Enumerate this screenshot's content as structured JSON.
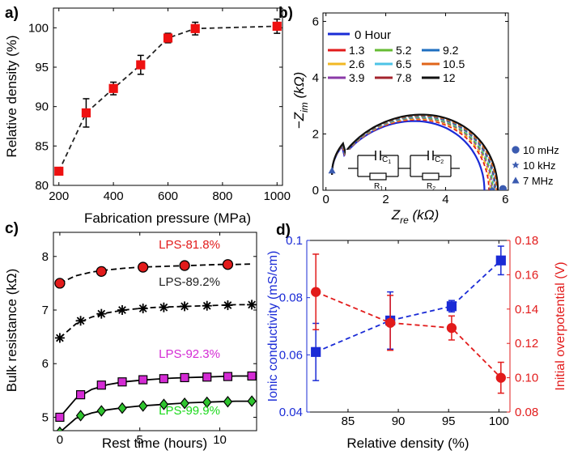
{
  "chart_data": [
    {
      "id": "a",
      "type": "line",
      "panel_label": "a)",
      "xlabel": "Fabrication pressure (MPa)",
      "ylabel": "Relative density (%)",
      "xlim": [
        180,
        1020
      ],
      "ylim": [
        80,
        102.5
      ],
      "xticks": [
        "200",
        "400",
        "600",
        "800",
        "1000"
      ],
      "yticks": [
        "80",
        "85",
        "90",
        "95",
        "100"
      ],
      "marker_color": "#ee1111",
      "line_color": "#222222",
      "x": [
        200,
        300,
        400,
        500,
        600,
        700,
        1000
      ],
      "y": [
        81.8,
        89.2,
        92.3,
        95.3,
        98.7,
        99.9,
        100.2
      ],
      "err": [
        0.4,
        1.8,
        0.8,
        1.2,
        0.6,
        0.8,
        0.9
      ]
    },
    {
      "id": "b",
      "type": "line",
      "panel_label": "b)",
      "xlabel": "Z",
      "xlabel_sub": "re",
      "xlabel_unit": " (kΩ)",
      "ylabel": "−Z",
      "ylabel_sub": "im",
      "ylabel_unit": " (kΩ)",
      "xlim": [
        -0.1,
        6.1
      ],
      "ylim": [
        0,
        6.3
      ],
      "xticks": [
        "0",
        "2",
        "4",
        "6"
      ],
      "yticks": [
        "0",
        "2",
        "4",
        "6"
      ],
      "legend_title": "0 Hour",
      "legend_title_color": "#1a2bd6",
      "legend": [
        {
          "label": "1.3",
          "color": "#e21b1b"
        },
        {
          "label": "5.2",
          "color": "#66bb33"
        },
        {
          "label": "9.2",
          "color": "#1f6fc0"
        },
        {
          "label": "2.6",
          "color": "#f2b824"
        },
        {
          "label": "6.5",
          "color": "#4dc3e6"
        },
        {
          "label": "10.5",
          "color": "#e0651a"
        },
        {
          "label": "3.9",
          "color": "#8b3aa8"
        },
        {
          "label": "7.8",
          "color": "#a4242e"
        },
        {
          "label": "12",
          "color": "#111111"
        }
      ],
      "series": [
        {
          "name": "0 Hour",
          "r0": 0.2,
          "r1": 5.3,
          "peak": 2.45,
          "color": "#1a2bd6",
          "dashed": false
        },
        {
          "name": "1.3",
          "r0": 0.2,
          "r1": 5.45,
          "peak": 2.5,
          "color": "#e21b1b",
          "dashed": true
        },
        {
          "name": "2.6",
          "r0": 0.2,
          "r1": 5.5,
          "peak": 2.53,
          "color": "#f2b824",
          "dashed": true
        },
        {
          "name": "3.9",
          "r0": 0.2,
          "r1": 5.55,
          "peak": 2.56,
          "color": "#8b3aa8",
          "dashed": true
        },
        {
          "name": "5.2",
          "r0": 0.2,
          "r1": 5.58,
          "peak": 2.58,
          "color": "#66bb33",
          "dashed": true
        },
        {
          "name": "6.5",
          "r0": 0.2,
          "r1": 5.62,
          "peak": 2.6,
          "color": "#4dc3e6",
          "dashed": true
        },
        {
          "name": "7.8",
          "r0": 0.2,
          "r1": 5.65,
          "peak": 2.62,
          "color": "#a4242e",
          "dashed": true
        },
        {
          "name": "9.2",
          "r0": 0.2,
          "r1": 5.67,
          "peak": 2.63,
          "color": "#1f6fc0",
          "dashed": true
        },
        {
          "name": "10.5",
          "r0": 0.2,
          "r1": 5.7,
          "peak": 2.65,
          "color": "#e0651a",
          "dashed": true
        },
        {
          "name": "12",
          "r0": 0.2,
          "r1": 5.75,
          "peak": 2.68,
          "color": "#111111",
          "dashed": false
        }
      ],
      "freq_markers": [
        {
          "label": "10 mHz",
          "symbol": "circle",
          "x": 5.92,
          "y": 0.05
        },
        {
          "label": "10 kHz",
          "symbol": "star",
          "x": 5.55,
          "y": 0.02
        },
        {
          "label": "7 MHz",
          "symbol": "triangle",
          "x": 0.2,
          "y": 0.7
        }
      ],
      "marker_color": "#3b5bb0",
      "circuit_labels": [
        "C",
        "R",
        "C",
        "R"
      ],
      "circuit_subscripts": [
        "1",
        "1",
        "2",
        "2"
      ]
    },
    {
      "id": "c",
      "type": "line",
      "panel_label": "c)",
      "xlabel": "Rest time (hours)",
      "ylabel": "Bulk resistance (kΩ)",
      "xlim": [
        -0.4,
        12.3
      ],
      "ylim": [
        4.75,
        8.45
      ],
      "xticks": [
        "0",
        "5",
        "10"
      ],
      "yticks": [
        "5",
        "6",
        "7",
        "8"
      ],
      "series": [
        {
          "name": "LPS-81.8%",
          "color": "#e21b1b",
          "label_color": "#e21b1b",
          "marker": "circle",
          "line": "dashed",
          "x": [
            0,
            2.6,
            5.2,
            7.8,
            10.5
          ],
          "y": [
            7.5,
            7.72,
            7.8,
            7.83,
            7.85
          ],
          "fit_x": [
            0,
            1,
            2,
            3,
            4,
            5,
            6,
            7,
            8,
            9,
            10,
            11,
            12
          ],
          "fit_y": [
            7.5,
            7.64,
            7.71,
            7.75,
            7.78,
            7.8,
            7.81,
            7.82,
            7.83,
            7.84,
            7.85,
            7.85,
            7.86
          ]
        },
        {
          "name": "LPS-89.2%",
          "color": "#222222",
          "label_color": "#222222",
          "marker": "star",
          "line": "dashed",
          "x": [
            0,
            1.3,
            2.6,
            3.9,
            5.2,
            6.5,
            7.8,
            9.2,
            10.5,
            12
          ],
          "y": [
            6.48,
            6.8,
            6.93,
            7.0,
            7.03,
            7.05,
            7.07,
            7.08,
            7.09,
            7.1
          ],
          "fit_x": [
            0,
            1,
            2,
            3,
            4,
            5,
            6,
            7,
            8,
            9,
            10,
            11,
            12
          ],
          "fit_y": [
            6.48,
            6.74,
            6.87,
            6.95,
            7.0,
            7.03,
            7.05,
            7.06,
            7.07,
            7.08,
            7.09,
            7.1,
            7.1
          ]
        },
        {
          "name": "LPS-92.3%",
          "color": "#d42bd4",
          "label_color": "#d42bd4",
          "marker": "square",
          "line": "solid",
          "x": [
            0,
            1.3,
            2.6,
            3.9,
            5.2,
            6.5,
            7.8,
            9.2,
            10.5,
            12
          ],
          "y": [
            5.0,
            5.42,
            5.6,
            5.66,
            5.7,
            5.72,
            5.74,
            5.75,
            5.76,
            5.77
          ],
          "fit_x": [
            0,
            1,
            2,
            3,
            4,
            5,
            6,
            7,
            8,
            9,
            10,
            11,
            12
          ],
          "fit_y": [
            5.0,
            5.35,
            5.52,
            5.61,
            5.66,
            5.69,
            5.71,
            5.73,
            5.74,
            5.75,
            5.76,
            5.77,
            5.77
          ]
        },
        {
          "name": "LPS-99.9%",
          "color": "#2ec42e",
          "label_color": "#1ad91a",
          "marker": "diamond",
          "line": "solid",
          "x": [
            0,
            1.3,
            2.6,
            3.9,
            5.2,
            6.5,
            7.8,
            9.2,
            10.5,
            12
          ],
          "y": [
            4.72,
            5.03,
            5.12,
            5.17,
            5.21,
            5.24,
            5.26,
            5.28,
            5.29,
            5.3
          ],
          "fit_x": [
            0,
            1,
            2,
            3,
            4,
            5,
            6,
            7,
            8,
            9,
            10,
            11,
            12
          ],
          "fit_y": [
            4.72,
            4.98,
            5.08,
            5.14,
            5.18,
            5.21,
            5.23,
            5.25,
            5.27,
            5.28,
            5.29,
            5.3,
            5.3
          ]
        }
      ]
    },
    {
      "id": "d",
      "type": "line",
      "panel_label": "d)",
      "xlabel": "Relative density (%)",
      "ylabel": "Ionic conductivity (mS/cm)",
      "ylabel_color": "#1a2bd6",
      "ylabel2": "Initial overpotential (V)",
      "ylabel2_color": "#e21b1b",
      "xlim": [
        80.9,
        101.1
      ],
      "ylim": [
        0.04,
        0.1
      ],
      "ylim2": [
        0.08,
        0.18
      ],
      "xticks": [
        "85",
        "90",
        "95",
        "100"
      ],
      "yticks": [
        "0.04",
        "0.06",
        "0.08",
        "0.1"
      ],
      "yticks2": [
        "0.08",
        "0.10",
        "0.12",
        "0.14",
        "0.16",
        "0.18"
      ],
      "series": [
        {
          "name": "Ionic conductivity",
          "axis": "left",
          "color": "#1a2bd6",
          "marker": "square",
          "x": [
            81.8,
            89.2,
            95.3,
            100.2
          ],
          "y": [
            0.061,
            0.072,
            0.077,
            0.093
          ],
          "err": [
            0.01,
            0.01,
            0.002,
            0.005
          ]
        },
        {
          "name": "Initial overpotential",
          "axis": "right",
          "color": "#e21b1b",
          "marker": "circle",
          "x": [
            81.8,
            89.2,
            95.3,
            100.2
          ],
          "y": [
            0.15,
            0.132,
            0.129,
            0.1
          ],
          "err": [
            0.022,
            0.016,
            0.007,
            0.009
          ]
        }
      ]
    }
  ]
}
